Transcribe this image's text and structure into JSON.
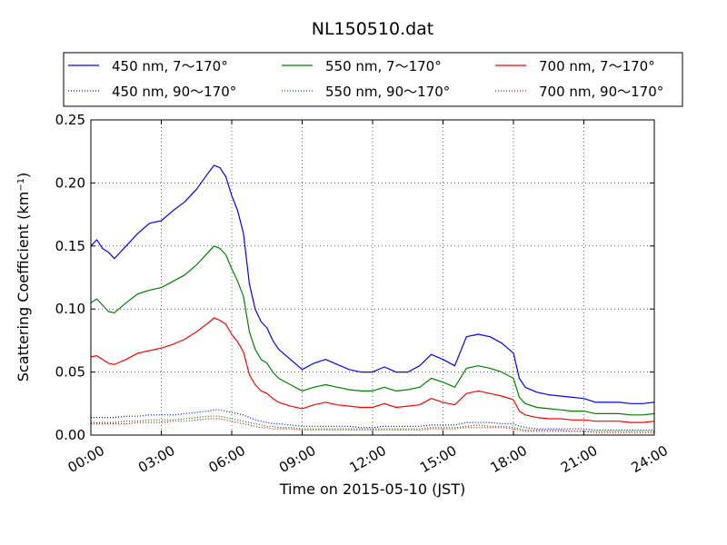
{
  "chart_data": {
    "type": "line",
    "title": "NL150510.dat",
    "xlabel": "Time on 2015-05-10 (JST)",
    "ylabel": "Scattering Coefficient (km",
    "ylabel_sup": "−1",
    "ylabel_close": ")",
    "xlim": [
      0,
      24
    ],
    "ylim": [
      0,
      0.25
    ],
    "grid": true,
    "legend_position": "top",
    "x_ticks": [
      {
        "value": 0,
        "label": "00:00"
      },
      {
        "value": 3,
        "label": "03:00"
      },
      {
        "value": 6,
        "label": "06:00"
      },
      {
        "value": 9,
        "label": "09:00"
      },
      {
        "value": 12,
        "label": "12:00"
      },
      {
        "value": 15,
        "label": "15:00"
      },
      {
        "value": 18,
        "label": "18:00"
      },
      {
        "value": 21,
        "label": "21:00"
      },
      {
        "value": 24,
        "label": "24:00"
      }
    ],
    "y_ticks": [
      {
        "value": 0.0,
        "label": "0.00"
      },
      {
        "value": 0.05,
        "label": "0.05"
      },
      {
        "value": 0.1,
        "label": "0.10"
      },
      {
        "value": 0.15,
        "label": "0.15"
      },
      {
        "value": 0.2,
        "label": "0.20"
      },
      {
        "value": 0.25,
        "label": "0.25"
      }
    ],
    "x_unit": "hour of day (JST)",
    "x": [
      0,
      0.25,
      0.5,
      0.75,
      1,
      1.5,
      2,
      2.5,
      3,
      3.5,
      4,
      4.5,
      5,
      5.25,
      5.5,
      5.75,
      6,
      6.25,
      6.5,
      6.75,
      7,
      7.25,
      7.5,
      7.75,
      8,
      8.5,
      9,
      9.5,
      10,
      10.5,
      11,
      11.5,
      12,
      12.5,
      13,
      13.5,
      14,
      14.5,
      15,
      15.5,
      16,
      16.5,
      17,
      17.5,
      18,
      18.25,
      18.5,
      19,
      19.5,
      20,
      20.5,
      21,
      21.5,
      22,
      22.5,
      23,
      23.5,
      24
    ],
    "series": [
      {
        "name": "450 nm, 7～170°",
        "color": "#0000ff",
        "style": "solid",
        "values": [
          0.15,
          0.155,
          0.148,
          0.145,
          0.14,
          0.15,
          0.16,
          0.168,
          0.17,
          0.178,
          0.185,
          0.195,
          0.208,
          0.214,
          0.212,
          0.205,
          0.19,
          0.178,
          0.16,
          0.12,
          0.1,
          0.09,
          0.085,
          0.075,
          0.068,
          0.06,
          0.052,
          0.057,
          0.06,
          0.056,
          0.052,
          0.05,
          0.05,
          0.054,
          0.05,
          0.05,
          0.055,
          0.064,
          0.06,
          0.055,
          0.078,
          0.08,
          0.078,
          0.073,
          0.065,
          0.045,
          0.038,
          0.034,
          0.032,
          0.031,
          0.03,
          0.029,
          0.026,
          0.026,
          0.026,
          0.025,
          0.025,
          0.026
        ]
      },
      {
        "name": "450 nm, 90～170°",
        "color": "#0000ff",
        "style": "dotted",
        "values": [
          0.014,
          0.014,
          0.014,
          0.014,
          0.014,
          0.015,
          0.015,
          0.016,
          0.016,
          0.016,
          0.017,
          0.018,
          0.019,
          0.02,
          0.02,
          0.019,
          0.018,
          0.017,
          0.016,
          0.014,
          0.012,
          0.011,
          0.01,
          0.009,
          0.009,
          0.008,
          0.007,
          0.007,
          0.007,
          0.007,
          0.007,
          0.006,
          0.006,
          0.007,
          0.007,
          0.007,
          0.007,
          0.008,
          0.008,
          0.008,
          0.01,
          0.01,
          0.01,
          0.009,
          0.009,
          0.007,
          0.006,
          0.005,
          0.005,
          0.005,
          0.005,
          0.005,
          0.004,
          0.004,
          0.004,
          0.004,
          0.004,
          0.004
        ]
      },
      {
        "name": "550 nm, 7～170°",
        "color": "#008000",
        "style": "solid",
        "values": [
          0.105,
          0.108,
          0.103,
          0.098,
          0.097,
          0.105,
          0.112,
          0.115,
          0.117,
          0.122,
          0.127,
          0.135,
          0.145,
          0.15,
          0.148,
          0.143,
          0.132,
          0.122,
          0.11,
          0.082,
          0.068,
          0.06,
          0.057,
          0.05,
          0.045,
          0.04,
          0.035,
          0.038,
          0.04,
          0.038,
          0.036,
          0.035,
          0.035,
          0.038,
          0.035,
          0.036,
          0.038,
          0.045,
          0.042,
          0.038,
          0.053,
          0.055,
          0.053,
          0.05,
          0.045,
          0.03,
          0.025,
          0.022,
          0.021,
          0.02,
          0.019,
          0.019,
          0.017,
          0.017,
          0.017,
          0.016,
          0.016,
          0.017
        ]
      },
      {
        "name": "550 nm, 90～170°",
        "color": "#008000",
        "style": "dotted",
        "values": [
          0.01,
          0.01,
          0.01,
          0.01,
          0.01,
          0.011,
          0.011,
          0.012,
          0.012,
          0.012,
          0.013,
          0.014,
          0.015,
          0.015,
          0.015,
          0.014,
          0.013,
          0.012,
          0.011,
          0.01,
          0.009,
          0.008,
          0.007,
          0.007,
          0.006,
          0.006,
          0.005,
          0.005,
          0.005,
          0.005,
          0.005,
          0.005,
          0.005,
          0.005,
          0.005,
          0.005,
          0.005,
          0.006,
          0.006,
          0.006,
          0.007,
          0.008,
          0.007,
          0.007,
          0.006,
          0.005,
          0.004,
          0.004,
          0.004,
          0.004,
          0.003,
          0.003,
          0.003,
          0.003,
          0.003,
          0.003,
          0.003,
          0.003
        ]
      },
      {
        "name": "700 nm, 7～170°",
        "color": "#ff0000",
        "style": "solid",
        "values": [
          0.062,
          0.063,
          0.06,
          0.057,
          0.056,
          0.06,
          0.065,
          0.067,
          0.069,
          0.072,
          0.076,
          0.082,
          0.089,
          0.093,
          0.091,
          0.088,
          0.08,
          0.074,
          0.066,
          0.048,
          0.04,
          0.035,
          0.033,
          0.029,
          0.026,
          0.023,
          0.021,
          0.024,
          0.026,
          0.024,
          0.023,
          0.022,
          0.022,
          0.025,
          0.022,
          0.023,
          0.024,
          0.029,
          0.026,
          0.024,
          0.033,
          0.035,
          0.033,
          0.031,
          0.028,
          0.019,
          0.016,
          0.014,
          0.013,
          0.013,
          0.012,
          0.012,
          0.011,
          0.011,
          0.011,
          0.01,
          0.01,
          0.011
        ]
      },
      {
        "name": "700 nm, 90～170°",
        "color": "#ff0000",
        "style": "dotted",
        "values": [
          0.009,
          0.009,
          0.009,
          0.009,
          0.009,
          0.009,
          0.01,
          0.01,
          0.01,
          0.011,
          0.011,
          0.012,
          0.013,
          0.013,
          0.013,
          0.012,
          0.011,
          0.01,
          0.009,
          0.008,
          0.007,
          0.006,
          0.006,
          0.005,
          0.005,
          0.005,
          0.004,
          0.004,
          0.004,
          0.004,
          0.004,
          0.004,
          0.004,
          0.004,
          0.004,
          0.004,
          0.004,
          0.005,
          0.005,
          0.005,
          0.006,
          0.006,
          0.006,
          0.006,
          0.005,
          0.004,
          0.003,
          0.003,
          0.003,
          0.003,
          0.003,
          0.003,
          0.002,
          0.002,
          0.002,
          0.002,
          0.002,
          0.002
        ]
      }
    ]
  }
}
